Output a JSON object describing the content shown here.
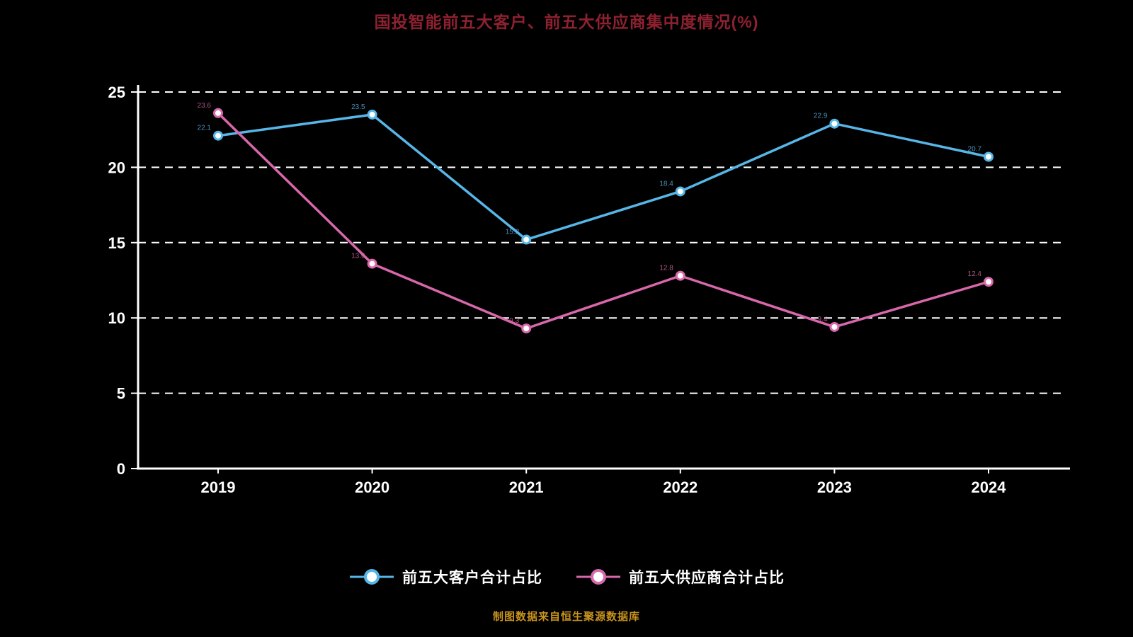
{
  "title": "国投智能前五大客户、前五大供应商集中度情况(%)",
  "footer": "制图数据来自恒生聚源数据库",
  "colors": {
    "background": "#000000",
    "title": "#8e2130",
    "axis": "#ffffff",
    "grid": "#ffffff",
    "tick_labels": "#ffffff",
    "footer": "#c9941e",
    "series1": "#57b6e8",
    "series2": "#d967ab"
  },
  "chart_data": {
    "type": "line",
    "title": "国投智能前五大客户、前五大供应商集中度情况(%)",
    "x": [
      "2019",
      "2020",
      "2021",
      "2022",
      "2023",
      "2024"
    ],
    "series": [
      {
        "name": "前五大客户合计占比",
        "color": "#57b6e8",
        "values": [
          22.1,
          23.5,
          15.2,
          18.4,
          22.9,
          20.7
        ]
      },
      {
        "name": "前五大供应商合计占比",
        "color": "#d967ab",
        "values": [
          23.6,
          13.6,
          9.3,
          12.8,
          9.4,
          12.4
        ]
      }
    ],
    "ylim": [
      0,
      25
    ],
    "yticks": [
      0,
      5,
      10,
      15,
      20,
      25
    ],
    "grid": "dashed-horizontal",
    "legend_position": "bottom",
    "marker": "circle-white-fill"
  }
}
